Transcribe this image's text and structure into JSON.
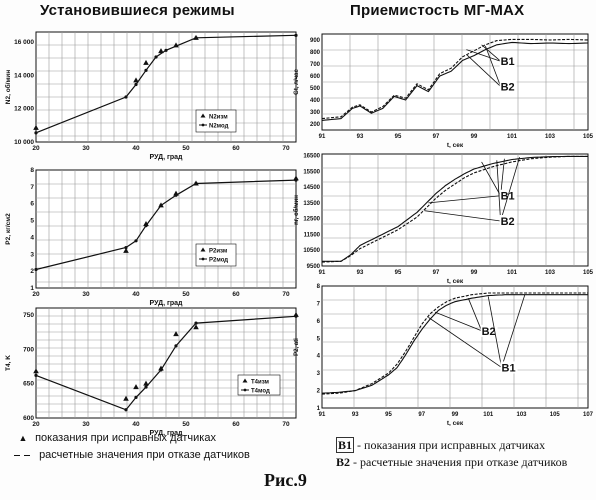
{
  "headings": {
    "left": "Установившиеся режимы",
    "right": "Приемистость МГ-МАХ"
  },
  "figure_label": "Рис.9",
  "footnotes": {
    "left": [
      {
        "marker": "▲",
        "text": "показания при исправных датчиках"
      },
      {
        "marker": "dash",
        "text": "расчетные значения при отказе датчиков"
      }
    ],
    "right": [
      {
        "code": "B1",
        "sep": "-",
        "text": "показания при исправных датчиках"
      },
      {
        "code": "B2",
        "sep": "-",
        "text": "расчетные значения при отказе датчиков"
      }
    ]
  },
  "colors": {
    "ink": "#111111",
    "grid": "#9a9a9a",
    "background": "#fdfdfd"
  },
  "chart_data": [
    {
      "type": "line",
      "ylabel": "N2, об/мин",
      "xlabel": "РУД, град",
      "xlim": [
        20,
        72
      ],
      "ylim": [
        10000,
        16600
      ],
      "xticks": [
        20,
        30,
        40,
        50,
        60,
        70
      ],
      "yticks": [
        10000,
        12000,
        14000,
        16000
      ],
      "ytick_labels": [
        "10 000",
        "12 000",
        "14 000",
        "16 000"
      ],
      "series": [
        {
          "name": "N2изм",
          "style": "markers",
          "x": [
            20,
            40,
            42,
            45,
            48,
            52
          ],
          "y": [
            10850,
            13700,
            14750,
            15450,
            15800,
            16250
          ]
        },
        {
          "name": "N2мод",
          "style": "line",
          "x": [
            20,
            38,
            40,
            42,
            44,
            46,
            52,
            72
          ],
          "y": [
            10550,
            12700,
            13450,
            14300,
            15100,
            15500,
            16250,
            16400
          ]
        }
      ],
      "legend": "center-right",
      "grid": true
    },
    {
      "type": "line",
      "ylabel": "P2, кг/см2",
      "xlabel": "РУД, град",
      "xlim": [
        20,
        72
      ],
      "ylim": [
        1,
        8
      ],
      "xticks": [
        20,
        30,
        40,
        50,
        60,
        70
      ],
      "yticks": [
        1,
        2,
        3,
        4,
        5,
        6,
        7,
        8
      ],
      "ytick_labels": [
        "1",
        "2",
        "3",
        "4",
        "5",
        "6",
        "7",
        "8"
      ],
      "series": [
        {
          "name": "P2изм",
          "style": "markers",
          "x": [
            38,
            42,
            45,
            48,
            52,
            72
          ],
          "y": [
            3.2,
            4.8,
            5.9,
            6.6,
            7.2,
            7.5
          ]
        },
        {
          "name": "P2мод",
          "style": "line",
          "x": [
            20,
            38,
            40,
            42,
            45,
            48,
            52,
            72
          ],
          "y": [
            2.1,
            3.4,
            3.8,
            4.7,
            5.9,
            6.5,
            7.2,
            7.4
          ]
        }
      ],
      "legend": "center-right",
      "grid": true
    },
    {
      "type": "line",
      "ylabel": "T4, K",
      "xlabel": "РУД, град",
      "xlim": [
        20,
        72
      ],
      "ylim": [
        600,
        760
      ],
      "xticks": [
        20,
        30,
        40,
        50,
        60,
        70
      ],
      "yticks": [
        600,
        650,
        700,
        750
      ],
      "ytick_labels": [
        "600",
        "650",
        "700",
        "750"
      ],
      "series": [
        {
          "name": "T4изм",
          "style": "markers",
          "x": [
            20,
            38,
            40,
            42,
            45,
            48,
            52,
            72
          ],
          "y": [
            668,
            628,
            645,
            650,
            672,
            722,
            732,
            750
          ]
        },
        {
          "name": "T4мод",
          "style": "line",
          "x": [
            20,
            38,
            40,
            42,
            45,
            48,
            52,
            72
          ],
          "y": [
            662,
            612,
            630,
            645,
            670,
            705,
            738,
            748
          ]
        }
      ],
      "legend": "bottom-right",
      "grid": true
    },
    {
      "type": "line",
      "ylabel": "Gt, л/час",
      "xlabel": "t, сек",
      "xlim": [
        91,
        105
      ],
      "ylim": [
        150,
        950
      ],
      "xticks": [
        91,
        93,
        95,
        97,
        99,
        101,
        103,
        105
      ],
      "yticks": [
        200,
        300,
        400,
        500,
        600,
        700,
        800,
        900
      ],
      "ytick_labels": [
        "200",
        "300",
        "400",
        "500",
        "600",
        "700",
        "800",
        "900"
      ],
      "series": [
        {
          "name": "B1",
          "x": [
            91,
            92,
            92.6,
            93,
            93.6,
            94.2,
            94.8,
            95.4,
            96,
            96.6,
            97.2,
            97.8,
            98.4,
            99,
            99.6,
            100.2,
            101,
            102,
            103,
            104,
            105
          ],
          "y": [
            230,
            245,
            330,
            350,
            290,
            330,
            430,
            400,
            520,
            470,
            600,
            640,
            730,
            770,
            820,
            860,
            880,
            870,
            875,
            870,
            875
          ]
        },
        {
          "name": "B2",
          "x": [
            91,
            92,
            92.6,
            93,
            93.6,
            94.2,
            94.8,
            95.4,
            96,
            96.6,
            97.2,
            97.8,
            98.4,
            99,
            99.6,
            100.2,
            101,
            102,
            103,
            104,
            105
          ],
          "y": [
            245,
            260,
            340,
            360,
            300,
            345,
            440,
            415,
            535,
            485,
            620,
            665,
            760,
            810,
            860,
            895,
            905,
            905,
            900,
            905,
            900
          ]
        }
      ],
      "annotations": [
        {
          "text": "B1",
          "x": 100.4,
          "y": 690,
          "lines_to": [
            [
              98.6,
              820
            ],
            [
              99.4,
              860
            ]
          ]
        },
        {
          "text": "B2",
          "x": 100.4,
          "y": 480,
          "lines_to": [
            [
              98.6,
              780
            ],
            [
              99.6,
              850
            ]
          ]
        }
      ],
      "grid": true
    },
    {
      "type": "line",
      "ylabel": "nг, об/мин",
      "xlabel": "t, сек",
      "xlim": [
        91,
        105
      ],
      "ylim": [
        9500,
        16600
      ],
      "xticks": [
        91,
        93,
        95,
        97,
        99,
        101,
        103,
        105
      ],
      "yticks": [
        9500,
        10500,
        11500,
        12500,
        13500,
        14500,
        15500,
        16500
      ],
      "ytick_labels": [
        "9500",
        "10500",
        "11500",
        "12500",
        "13500",
        "14500",
        "15500",
        "16500"
      ],
      "series": [
        {
          "name": "B1",
          "x": [
            91,
            92,
            92.5,
            93,
            94,
            95,
            96,
            96.5,
            97,
            97.5,
            98,
            98.5,
            99,
            100,
            101,
            102,
            103,
            104,
            105
          ],
          "y": [
            9800,
            9800,
            10200,
            10800,
            11400,
            12000,
            12900,
            13500,
            14100,
            14600,
            15000,
            15350,
            15650,
            16000,
            16250,
            16380,
            16430,
            16450,
            16450
          ]
        },
        {
          "name": "B2",
          "x": [
            91,
            92,
            92.5,
            93,
            94,
            95,
            96,
            96.5,
            97,
            97.5,
            98,
            98.5,
            99,
            100,
            101,
            102,
            103,
            104,
            105
          ],
          "y": [
            9750,
            9800,
            10150,
            10600,
            11200,
            11800,
            12600,
            13200,
            13800,
            14300,
            14700,
            15100,
            15400,
            15800,
            16100,
            16300,
            16400,
            16450,
            16450
          ]
        }
      ],
      "annotations": [
        {
          "text": "B1",
          "x": 100.4,
          "y": 13700,
          "lines_to": [
            [
              96.6,
              13500
            ],
            [
              99.4,
              16100
            ],
            [
              100.6,
              16300
            ]
          ]
        },
        {
          "text": "B2",
          "x": 100.4,
          "y": 12100,
          "lines_to": [
            [
              96.4,
              13000
            ],
            [
              100.2,
              16200
            ],
            [
              101.4,
              16400
            ]
          ]
        }
      ],
      "grid": true
    },
    {
      "type": "line",
      "ylabel": "P2, ati",
      "xlabel": "t, сек",
      "xlim": [
        91,
        107
      ],
      "ylim": [
        1,
        8
      ],
      "xticks": [
        91,
        93,
        95,
        97,
        99,
        101,
        103,
        105,
        107
      ],
      "yticks": [
        1,
        2,
        3,
        4,
        5,
        6,
        7,
        8
      ],
      "ytick_labels": [
        "1",
        "2",
        "3",
        "4",
        "5",
        "6",
        "7",
        "8"
      ],
      "series": [
        {
          "name": "B1",
          "x": [
            91,
            92,
            93,
            94,
            95,
            95.5,
            96,
            96.5,
            97,
            97.5,
            98,
            98.5,
            99,
            100,
            101,
            102,
            103,
            105,
            107
          ],
          "y": [
            1.85,
            1.9,
            2.0,
            2.3,
            2.9,
            3.3,
            4.0,
            4.8,
            5.5,
            6.1,
            6.6,
            6.9,
            7.1,
            7.3,
            7.45,
            7.5,
            7.5,
            7.5,
            7.5
          ]
        },
        {
          "name": "B2",
          "x": [
            91,
            92,
            93,
            94,
            95,
            95.5,
            96,
            96.5,
            97,
            97.5,
            98,
            98.5,
            99,
            100,
            101,
            102,
            103,
            105,
            107
          ],
          "y": [
            1.8,
            1.85,
            2.0,
            2.4,
            3.0,
            3.5,
            4.2,
            5.0,
            5.8,
            6.4,
            6.8,
            7.1,
            7.3,
            7.5,
            7.6,
            7.6,
            7.6,
            7.6,
            7.6
          ]
        }
      ],
      "annotations": [
        {
          "text": "B2",
          "x": 100.6,
          "y": 5.2,
          "lines_to": [
            [
              97.8,
              6.5
            ],
            [
              99.8,
              7.3
            ]
          ]
        },
        {
          "text": "B1",
          "x": 101.8,
          "y": 3.1,
          "lines_to": [
            [
              97.4,
              6.2
            ],
            [
              101.0,
              7.4
            ],
            [
              103.2,
              7.5
            ]
          ]
        }
      ],
      "grid": true
    }
  ]
}
